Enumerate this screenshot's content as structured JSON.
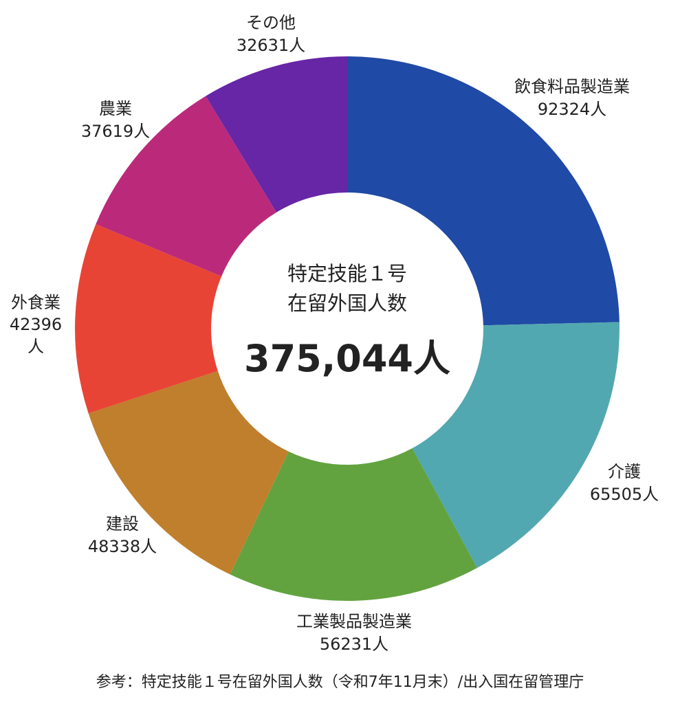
{
  "chart_data": {
    "type": "pie",
    "style": "donut",
    "total_unit_label": "人",
    "center": {
      "title_line1": "特定技能１号",
      "title_line2": "在留外国人数",
      "total": "375,044人"
    },
    "slices": [
      {
        "label": "飲食料品製造業",
        "value": 92324,
        "value_text": "92324人",
        "color": "#1f4aa6"
      },
      {
        "label": "介護",
        "value": 65505,
        "value_text": "65505人",
        "color": "#52a8b0"
      },
      {
        "label": "工業製品製造業",
        "value": 56231,
        "value_text": "56231人",
        "color": "#62a33f"
      },
      {
        "label": "建設",
        "value": 48338,
        "value_text": "48338人",
        "color": "#c07f2d"
      },
      {
        "label": "外食業",
        "value": 42396,
        "value_text": "42396人",
        "color": "#e84436"
      },
      {
        "label": "農業",
        "value": 37619,
        "value_text": "37619人",
        "color": "#bb2a7a"
      },
      {
        "label": "その他",
        "value": 32631,
        "value_text": "32631人",
        "color": "#6626a6"
      }
    ],
    "source": "参考：特定技能１号在留外国人数（令和7年11月末）/出入国在留管理庁"
  }
}
